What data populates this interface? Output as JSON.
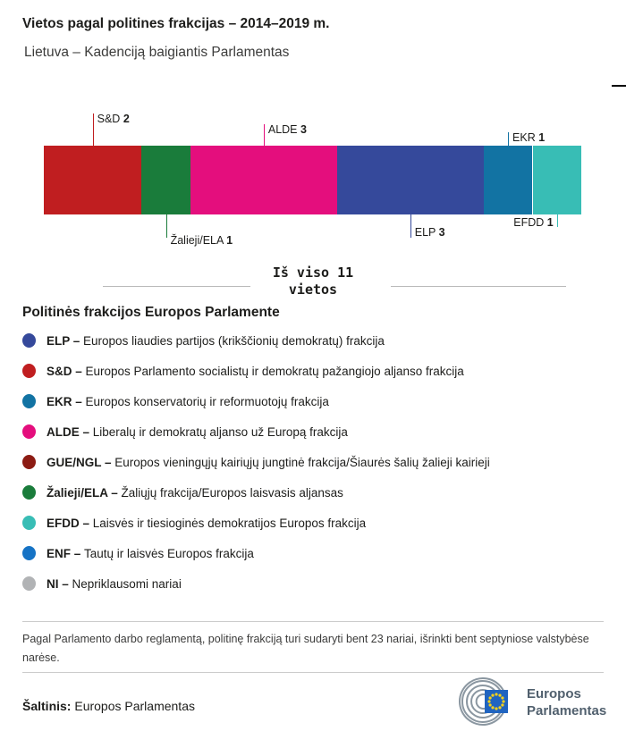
{
  "header": {
    "title": "Vietos pagal politines frakcijas – 2014–2019 m.",
    "subtitle": "Lietuva – Kadenciją baigiantis Parlamentas"
  },
  "chart_data": {
    "type": "bar",
    "stacked": true,
    "orientation": "horizontal",
    "total_seats": 11,
    "title": "Vietos pagal politines frakcijas – 2014–2019 m.",
    "annotation_total": "Iš viso 11 vietos",
    "series": [
      {
        "name": "S&D",
        "seats": 2,
        "color": "#c01e20",
        "label_side": "above"
      },
      {
        "name": "Žalieji/ELA",
        "seats": 1,
        "color": "#1a7c3b",
        "label_side": "below"
      },
      {
        "name": "ALDE",
        "seats": 3,
        "color": "#e40e7d",
        "label_side": "above"
      },
      {
        "name": "ELP",
        "seats": 3,
        "color": "#35499b",
        "label_side": "below"
      },
      {
        "name": "EKR",
        "seats": 1,
        "color": "#1273a3",
        "label_side": "above"
      },
      {
        "name": "EFDD",
        "seats": 1,
        "color": "#38bdb5",
        "label_side": "below"
      }
    ]
  },
  "total_banner": {
    "line1": "Iš viso 11",
    "line2": "vietos"
  },
  "legend": {
    "heading": "Politinės frakcijos Europos Parlamente",
    "items": [
      {
        "abbr": "ELP –",
        "desc": "Europos liaudies partijos (krikščionių demokratų) frakcija",
        "color": "#35499b"
      },
      {
        "abbr": "S&D –",
        "desc": "Europos Parlamento socialistų ir demokratų pažangiojo aljanso frakcija",
        "color": "#c01e20"
      },
      {
        "abbr": "EKR –",
        "desc": "Europos konservatorių ir reformuotojų frakcija",
        "color": "#1273a3"
      },
      {
        "abbr": "ALDE –",
        "desc": "Liberalų ir demokratų aljanso už Europą frakcija",
        "color": "#e40e7d"
      },
      {
        "abbr": "GUE/NGL –",
        "desc": "Europos vieningųjų kairiųjų jungtinė frakcija/Šiaurės šalių žalieji kairieji",
        "color": "#8c1b13"
      },
      {
        "abbr": "Žalieji/ELA –",
        "desc": "Žaliųjų frakcija/Europos laisvasis aljansas",
        "color": "#1a7c3b"
      },
      {
        "abbr": "EFDD –",
        "desc": "Laisvės ir tiesioginės demokratijos Europos frakcija",
        "color": "#38bdb5"
      },
      {
        "abbr": "ENF –",
        "desc": "Tautų ir laisvės Europos frakcija",
        "color": "#1673c5"
      },
      {
        "abbr": "NI –",
        "desc": "Nepriklausomi nariai",
        "color": "#b1b3b5"
      }
    ]
  },
  "footnote": "Pagal Parlamento darbo reglamentą, politinę frakciją turi sudaryti bent 23 nariai, išrinkti bent septyniose valstybėse narėse.",
  "source": {
    "label": "Šaltinis:",
    "value": "Europos Parlamentas"
  },
  "logo": {
    "line1": "Europos",
    "line2": "Parlamentas"
  }
}
